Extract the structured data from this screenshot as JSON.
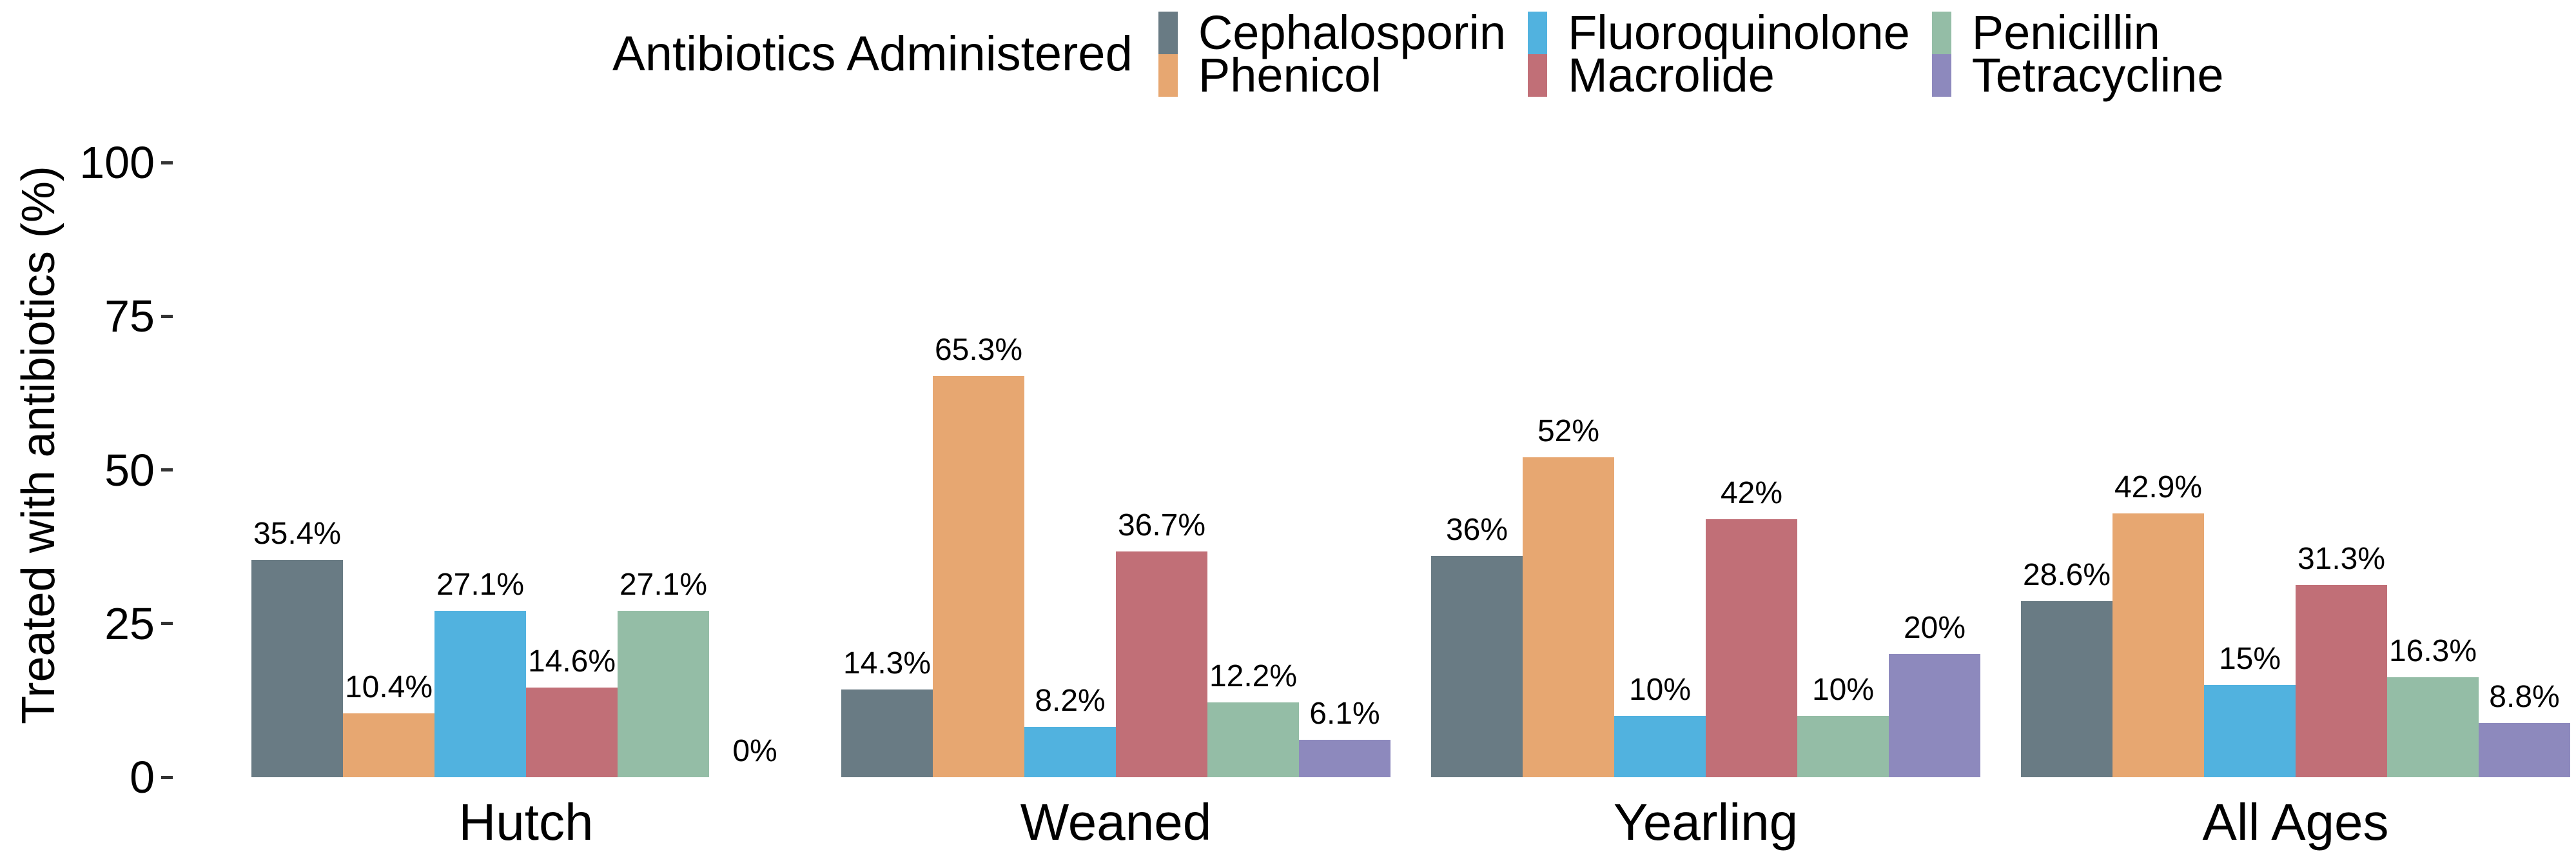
{
  "legend": {
    "title": "Antibiotics Administered",
    "entries": [
      {
        "label": "Cephalosporin",
        "color": "#697b84"
      },
      {
        "label": "Fluoroquinolone",
        "color": "#51b2df"
      },
      {
        "label": "Penicillin",
        "color": "#94bda6"
      },
      {
        "label": "Phenicol",
        "color": "#e7a771"
      },
      {
        "label": "Macrolide",
        "color": "#c16f77"
      },
      {
        "label": "Tetracycline",
        "color": "#8d89bd"
      }
    ]
  },
  "chart_data": {
    "type": "bar",
    "title": "",
    "xlabel": "",
    "ylabel": "Treated with antibiotics (%)",
    "ylim": [
      0,
      100
    ],
    "yticks": [
      0,
      25,
      50,
      75,
      100
    ],
    "grid": false,
    "legend_position": "top",
    "categories": [
      "Hutch",
      "Weaned",
      "Yearling",
      "All Ages"
    ],
    "series": [
      {
        "name": "Cephalosporin",
        "color": "#697b84",
        "values": [
          35.4,
          14.3,
          36,
          28.6
        ],
        "labels": [
          "35.4%",
          "14.3%",
          "36%",
          "28.6%"
        ]
      },
      {
        "name": "Phenicol",
        "color": "#e7a771",
        "values": [
          10.4,
          65.3,
          52,
          42.9
        ],
        "labels": [
          "10.4%",
          "65.3%",
          "52%",
          "42.9%"
        ]
      },
      {
        "name": "Fluoroquinolone",
        "color": "#51b2df",
        "values": [
          27.1,
          8.2,
          10,
          15
        ],
        "labels": [
          "27.1%",
          "8.2%",
          "10%",
          "15%"
        ]
      },
      {
        "name": "Macrolide",
        "color": "#c16f77",
        "values": [
          14.6,
          36.7,
          42,
          31.3
        ],
        "labels": [
          "14.6%",
          "36.7%",
          "42%",
          "31.3%"
        ]
      },
      {
        "name": "Penicillin",
        "color": "#94bda6",
        "values": [
          27.1,
          12.2,
          10,
          16.3
        ],
        "labels": [
          "27.1%",
          "12.2%",
          "10%",
          "16.3%"
        ]
      },
      {
        "name": "Tetracycline",
        "color": "#8d89bd",
        "values": [
          0,
          6.1,
          20,
          8.8
        ],
        "labels": [
          "0%",
          "6.1%",
          "20%",
          "8.8%"
        ]
      }
    ]
  }
}
